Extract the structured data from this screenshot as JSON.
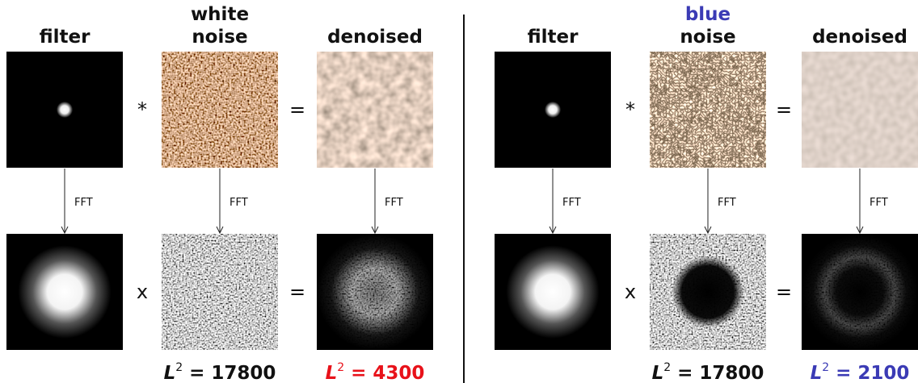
{
  "panels": [
    {
      "filter_title": "filter",
      "noise_title": [
        "white",
        "noise"
      ],
      "denoised_title": "denoised",
      "convolve": "*",
      "equals_top": "=",
      "fft_labels": [
        "FFT",
        "FFT",
        "FFT"
      ],
      "multiply": "x",
      "equals_bottom": "=",
      "noise_metric": {
        "symbol": "L",
        "exponent": "2",
        "equation": "= 17800"
      },
      "denoised_metric": {
        "symbol": "L",
        "exponent": "2",
        "equation": "= 4300"
      }
    },
    {
      "filter_title": "filter",
      "noise_title": [
        "blue",
        "noise"
      ],
      "denoised_title": "denoised",
      "convolve": "*",
      "equals_top": "=",
      "fft_labels": [
        "FFT",
        "FFT",
        "FFT"
      ],
      "multiply": "x",
      "equals_bottom": "=",
      "noise_metric": {
        "symbol": "L",
        "exponent": "2",
        "equation": "= 17800"
      },
      "denoised_metric": {
        "symbol": "L",
        "exponent": "2",
        "equation": "= 2100"
      }
    }
  ]
}
